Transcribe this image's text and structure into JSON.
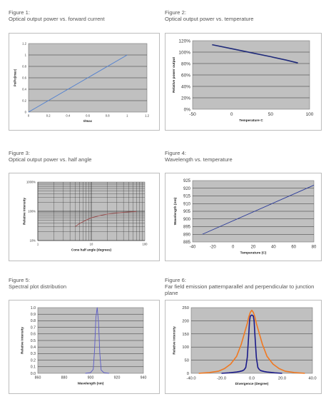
{
  "figures": [
    {
      "num": "Figure 1:",
      "title": "Optical output power vs. forward current"
    },
    {
      "num": "Figure 2:",
      "title": "Optical output power vs. temperature"
    },
    {
      "num": "Figure 3:",
      "title": "Optical output power vs. half angle"
    },
    {
      "num": "Figure 4:",
      "title": "Wavelength vs. temperature"
    },
    {
      "num": "Figure 5:",
      "title": "Spectral plot distribution"
    },
    {
      "num": "Figure 6:",
      "title": "Far field emission patternparallel and perpendicular to junction plane"
    }
  ],
  "chart_data": [
    {
      "type": "line",
      "title": "",
      "xlabel": "I/Imax",
      "ylabel": "Po/Po(Imax)",
      "xlim": [
        0,
        1.2
      ],
      "ylim": [
        0,
        1.2
      ],
      "xticks": [
        "0",
        "0.2",
        "0.4",
        "0.6",
        "0.8",
        "1",
        "1.2"
      ],
      "yticks": [
        "0",
        "0.2",
        "0.4",
        "0.6",
        "0.8",
        "1",
        "1.2"
      ],
      "plot_bg": "#c0c0c0",
      "grid": true,
      "series": [
        {
          "color": "#4f7fd0",
          "x": [
            0,
            1
          ],
          "y": [
            0,
            1
          ]
        }
      ]
    },
    {
      "type": "line",
      "title": "",
      "xlabel": "Temperature C",
      "ylabel": "Relative power output",
      "xlim": [
        -50,
        100
      ],
      "ylim": [
        0,
        120
      ],
      "xticks": [
        "-50",
        "0",
        "50",
        "100"
      ],
      "yticks": [
        "0%",
        "20%",
        "40%",
        "60%",
        "80%",
        "100%",
        "120%"
      ],
      "plot_bg": "#c0c0c0",
      "grid": true,
      "series": [
        {
          "color": "#1f2a7a",
          "x": [
            -25,
            0,
            25,
            50,
            70,
            85
          ],
          "y": [
            113,
            106,
            99,
            92,
            86,
            81
          ]
        }
      ]
    },
    {
      "type": "line",
      "title": "",
      "xlabel": "Cone half angle (degrees)",
      "ylabel": "Relative Intensity",
      "xscale": "log",
      "yscale": "log",
      "xlim": [
        1,
        100
      ],
      "ylim": [
        10,
        1000
      ],
      "xticks": [
        "1",
        "10",
        "100"
      ],
      "yticks": [
        "10%",
        "100%",
        "1000%"
      ],
      "plot_bg": "#c0c0c0",
      "grid": true,
      "series": [
        {
          "color": "#9b4a4a",
          "x": [
            5,
            6,
            8,
            10,
            15,
            20,
            30,
            40,
            50,
            60,
            70
          ],
          "y": [
            30,
            38,
            50,
            60,
            72,
            80,
            88,
            92,
            95,
            97,
            98
          ]
        }
      ]
    },
    {
      "type": "line",
      "title": "",
      "xlabel": "Temperature (C)",
      "ylabel": "Wavelength (nm)",
      "xlim": [
        -40,
        85
      ],
      "ylim": [
        885,
        925
      ],
      "xticks": [
        "-40",
        "-20",
        "0",
        "20",
        "40",
        "60",
        "80"
      ],
      "yticks": [
        "885",
        "890",
        "895",
        "900",
        "905",
        "910",
        "915",
        "920",
        "925"
      ],
      "plot_bg": "#c0c0c0",
      "grid": true,
      "series": [
        {
          "color": "#2a3a9a",
          "x": [
            -30,
            85
          ],
          "y": [
            890,
            922
          ]
        }
      ]
    },
    {
      "type": "line",
      "title": "",
      "xlabel": "Wavelength (nm)",
      "ylabel": "Relative Intensity",
      "xlim": [
        860,
        940
      ],
      "ylim": [
        0,
        1.0
      ],
      "xticks": [
        "860",
        "880",
        "900",
        "920",
        "940"
      ],
      "yticks": [
        "0.0",
        "0.1",
        "0.2",
        "0.3",
        "0.4",
        "0.5",
        "0.6",
        "0.7",
        "0.8",
        "0.9",
        "1.0"
      ],
      "plot_bg": "#c0c0c0",
      "grid": true,
      "series": [
        {
          "color": "#5a5ac8",
          "x": [
            896,
            900,
            902,
            903,
            904,
            905,
            906,
            907,
            908,
            910,
            914
          ],
          "y": [
            0,
            0.01,
            0.06,
            0.35,
            0.85,
            1.0,
            0.78,
            0.3,
            0.05,
            0.01,
            0
          ]
        }
      ]
    },
    {
      "type": "line",
      "title": "",
      "xlabel": "Divergence (Degree)",
      "ylabel": "Relative Intensity",
      "xlim": [
        -40,
        40
      ],
      "ylim": [
        0,
        250
      ],
      "xticks": [
        "-40.0",
        "-20.0",
        "0.0",
        "20.0",
        "40.0"
      ],
      "yticks": [
        "0",
        "50",
        "100",
        "150",
        "200",
        "250"
      ],
      "plot_bg": "#c0c0c0",
      "grid": true,
      "series": [
        {
          "color": "#f07820",
          "x": [
            -35,
            -28,
            -22,
            -18,
            -14,
            -10,
            -7,
            -5,
            -3,
            -2,
            -1,
            0,
            1,
            2,
            3,
            5,
            7,
            10,
            14,
            18,
            22,
            28,
            35
          ],
          "y": [
            0,
            3,
            8,
            18,
            35,
            65,
            110,
            150,
            190,
            215,
            232,
            240,
            232,
            215,
            190,
            150,
            110,
            65,
            35,
            18,
            8,
            3,
            0
          ]
        },
        {
          "color": "#1a1a8a",
          "x": [
            -20,
            -15,
            -10,
            -8,
            -6,
            -5,
            -4,
            -3,
            -2,
            -1.5,
            -1,
            0,
            1,
            1.5,
            2,
            3,
            4,
            5,
            6,
            8,
            10,
            15,
            20
          ],
          "y": [
            0,
            2,
            5,
            7,
            10,
            14,
            22,
            60,
            150,
            200,
            218,
            222,
            218,
            200,
            150,
            60,
            22,
            14,
            10,
            7,
            5,
            2,
            0
          ]
        }
      ]
    }
  ]
}
